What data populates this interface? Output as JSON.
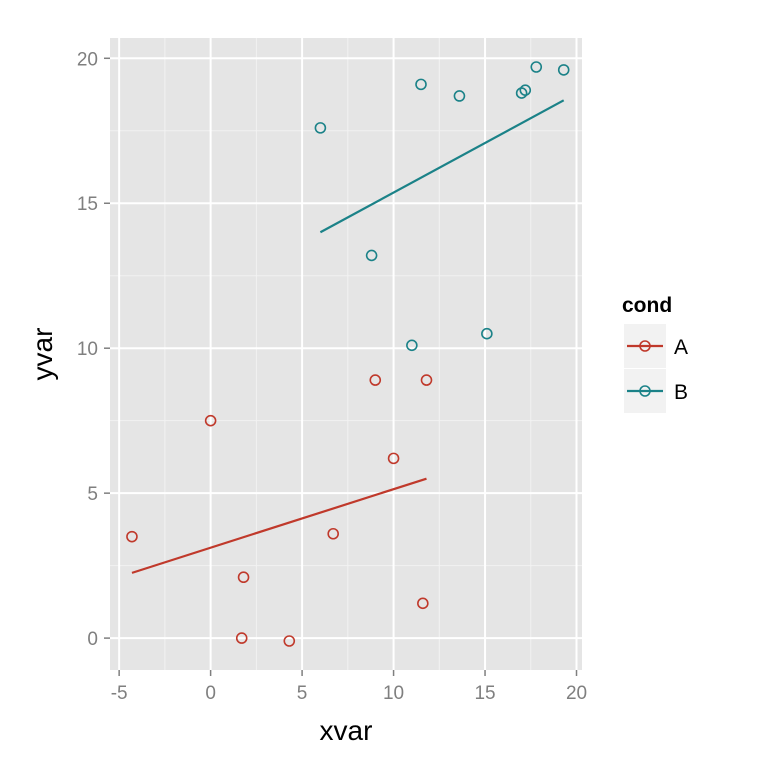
{
  "chart_data": {
    "type": "scatter",
    "xlabel": "xvar",
    "ylabel": "yvar",
    "xlim": [
      -5.5,
      20.3
    ],
    "ylim": [
      -1.1,
      20.7
    ],
    "x_ticks": [
      -5,
      0,
      5,
      10,
      15,
      20
    ],
    "y_ticks": [
      0,
      5,
      10,
      15,
      20
    ],
    "x_tick_labels": [
      "-5",
      "0",
      "5",
      "10",
      "15",
      "20"
    ],
    "y_tick_labels": [
      "0",
      "5",
      "10",
      "15",
      "20"
    ],
    "grid": true,
    "legend": {
      "title": "cond",
      "position": "right"
    },
    "series": [
      {
        "name": "A",
        "color": "#c0392b",
        "points": [
          [
            -4.3,
            3.5
          ],
          [
            0.0,
            7.5
          ],
          [
            1.7,
            0.0
          ],
          [
            1.8,
            2.1
          ],
          [
            4.3,
            -0.1
          ],
          [
            6.7,
            3.6
          ],
          [
            9.0,
            8.9
          ],
          [
            10.0,
            6.2
          ],
          [
            11.6,
            1.2
          ],
          [
            11.8,
            8.9
          ]
        ],
        "fit_line": [
          [
            -4.3,
            2.25
          ],
          [
            11.8,
            5.5
          ]
        ]
      },
      {
        "name": "B",
        "color": "#1b8288",
        "points": [
          [
            6.0,
            17.6
          ],
          [
            8.8,
            13.2
          ],
          [
            11.0,
            10.1
          ],
          [
            11.5,
            19.1
          ],
          [
            13.6,
            18.7
          ],
          [
            15.1,
            10.5
          ],
          [
            17.0,
            18.8
          ],
          [
            17.2,
            18.9
          ],
          [
            17.8,
            19.7
          ],
          [
            19.3,
            19.6
          ]
        ],
        "fit_line": [
          [
            6.0,
            14.0
          ],
          [
            19.3,
            18.55
          ]
        ]
      }
    ]
  }
}
